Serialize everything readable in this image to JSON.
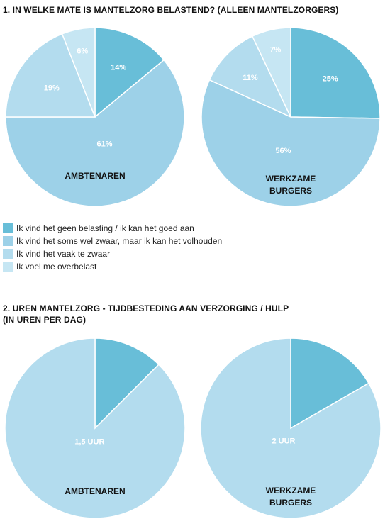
{
  "colors": {
    "c1": "#68bed8",
    "c2": "#9dd1e8",
    "c3": "#b3dcee",
    "c4": "#c6e6f3"
  },
  "section1": {
    "title": "1. IN WELKE MATE IS MANTELZORG BELASTEND? (ALLEEN MANTELZORGERS)"
  },
  "section2": {
    "title": "2. UREN MANTELZORG - TIJDBESTEDING AAN VERZORGING / HULP\n(IN UREN PER DAG)"
  },
  "legend": {
    "items": [
      {
        "label": "Ik vind het geen belasting / ik kan het goed aan",
        "color": "#68bed8"
      },
      {
        "label": "Ik vind het soms wel zwaar, maar ik kan het volhouden",
        "color": "#9dd1e8"
      },
      {
        "label": "Ik vind het vaak te zwaar",
        "color": "#b3dcee"
      },
      {
        "label": "Ik voel me overbelast",
        "color": "#c6e6f3"
      }
    ]
  },
  "chart_data": [
    {
      "type": "pie",
      "group": "AMBTENAREN",
      "categories": [
        "Ik vind het geen belasting / ik kan het goed aan",
        "Ik vind het soms wel zwaar, maar ik kan het volhouden",
        "Ik vind het vaak te zwaar",
        "Ik voel me overbelast"
      ],
      "values": [
        14,
        61,
        19,
        6
      ],
      "labels": [
        "14%",
        "61%",
        "19%",
        "6%"
      ]
    },
    {
      "type": "pie",
      "group": "WERKZAME\nBURGERS",
      "categories": [
        "Ik vind het geen belasting / ik kan het goed aan",
        "Ik vind het soms wel zwaar, maar ik kan het volhouden",
        "Ik vind het vaak te zwaar",
        "Ik voel me overbelast"
      ],
      "values": [
        25,
        56,
        11,
        7
      ],
      "labels": [
        "25%",
        "56%",
        "11%",
        "7%"
      ]
    },
    {
      "type": "pie",
      "group": "AMBTENAREN",
      "values": [
        1.5,
        10.5
      ],
      "labels": [
        "",
        "1,5 UUR"
      ]
    },
    {
      "type": "pie",
      "group": "WERKZAME\nBURGERS",
      "values": [
        2,
        10
      ],
      "labels": [
        "",
        "2 UUR"
      ]
    }
  ]
}
